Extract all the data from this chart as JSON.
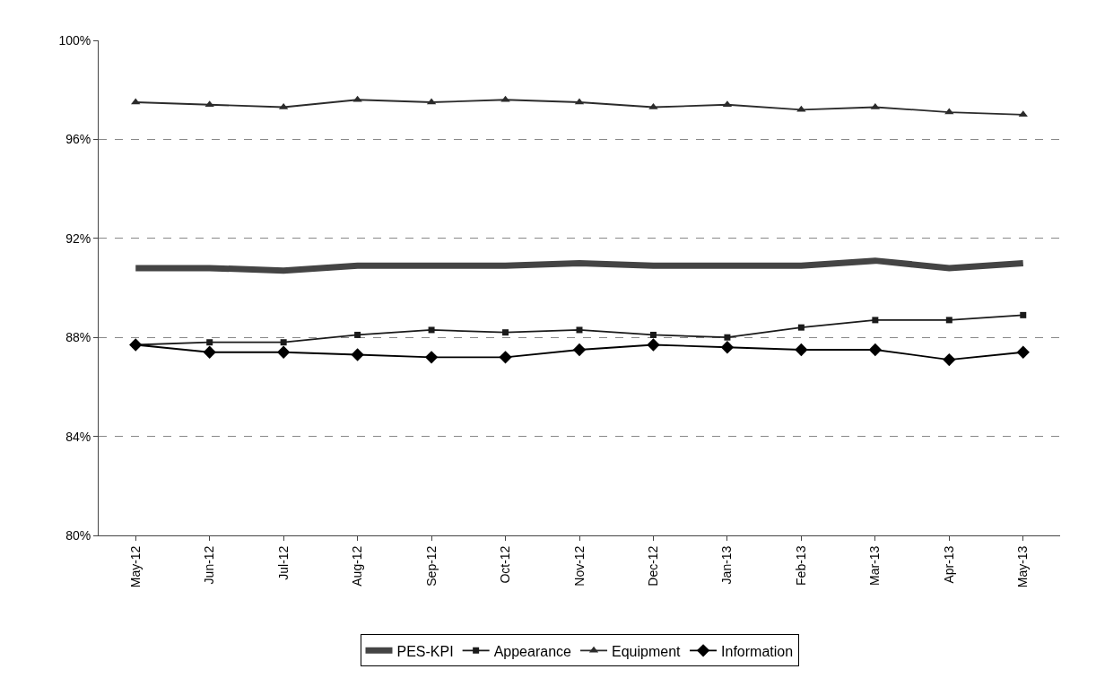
{
  "chart_data": {
    "type": "line",
    "categories": [
      "May-12",
      "Jun-12",
      "Jul-12",
      "Aug-12",
      "Sep-12",
      "Oct-12",
      "Nov-12",
      "Dec-12",
      "Jan-13",
      "Feb-13",
      "Mar-13",
      "Apr-13",
      "May-13"
    ],
    "series": [
      {
        "name": "PES-KPI",
        "color": "#444444",
        "marker": "none",
        "values": [
          90.8,
          90.8,
          90.7,
          90.9,
          90.9,
          90.9,
          91.0,
          90.9,
          90.9,
          90.9,
          91.1,
          90.8,
          91.0
        ]
      },
      {
        "name": "Appearance",
        "color": "#1a1a1a",
        "marker": "square",
        "values": [
          87.7,
          87.8,
          87.8,
          88.1,
          88.3,
          88.2,
          88.3,
          88.1,
          88.0,
          88.4,
          88.7,
          88.7,
          88.9
        ]
      },
      {
        "name": "Equipment",
        "color": "#2b2b2b",
        "marker": "triangle",
        "values": [
          97.5,
          97.4,
          97.3,
          97.6,
          97.5,
          97.6,
          97.5,
          97.3,
          97.4,
          97.2,
          97.3,
          97.1,
          97.0
        ]
      },
      {
        "name": "Information",
        "color": "#000000",
        "marker": "diamond",
        "values": [
          87.7,
          87.4,
          87.4,
          87.3,
          87.2,
          87.2,
          87.5,
          87.7,
          87.6,
          87.5,
          87.5,
          87.1,
          87.4
        ]
      }
    ],
    "ylim": [
      80,
      100
    ],
    "yticks": [
      {
        "value": 80,
        "label": "80%"
      },
      {
        "value": 84,
        "label": "84%"
      },
      {
        "value": 88,
        "label": "88%"
      },
      {
        "value": 92,
        "label": "92%"
      },
      {
        "value": 96,
        "label": "96%"
      },
      {
        "value": 100,
        "label": "100%"
      }
    ],
    "grid": "y",
    "legend": "bottom",
    "line_style": "solid"
  }
}
